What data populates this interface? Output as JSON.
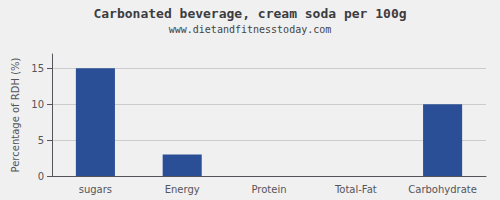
{
  "chart_data": {
    "type": "bar",
    "title": "Carbonated beverage, cream soda per 100g",
    "subtitle": "www.dietandfitnesstoday.com",
    "categories": [
      "sugars",
      "Energy",
      "Protein",
      "Total-Fat",
      "Carbohydrate"
    ],
    "values": [
      15.0,
      3.0,
      0.0,
      0.0,
      10.0
    ],
    "color": "#2b4f96",
    "ylabel": "Percentage of RDH (%)",
    "ylim": [
      0,
      17
    ],
    "yticks": [
      0,
      5,
      10,
      15
    ],
    "grid": true
  }
}
